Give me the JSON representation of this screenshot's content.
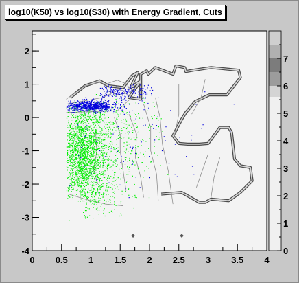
{
  "chart_data": {
    "type": "scatter",
    "title": "log10(K50) vs log10(S30) with Energy Gradient, Cuts",
    "xlabel": "",
    "ylabel": "",
    "xlim": [
      0,
      4
    ],
    "ylim": [
      -4,
      2.6
    ],
    "x_ticks": [
      "0",
      "0.5",
      "1",
      "1.5",
      "2",
      "2.5",
      "3",
      "3.5",
      "4"
    ],
    "y_ticks": [
      "-4",
      "-3",
      "-2",
      "-1",
      "0",
      "1",
      "2"
    ],
    "colorbar": {
      "range": [
        0,
        8
      ],
      "labels": [
        "0",
        "1",
        "2",
        "3",
        "4",
        "5",
        "6",
        "7"
      ],
      "bands": [
        {
          "from": 0,
          "to": 5.6,
          "color": "#f0f0f0"
        },
        {
          "from": 5.6,
          "to": 6.0,
          "color": "#d4d4d4"
        },
        {
          "from": 6.0,
          "to": 6.5,
          "color": "#9c9c9c"
        },
        {
          "from": 6.5,
          "to": 7.0,
          "color": "#7c7c7c"
        },
        {
          "from": 7.0,
          "to": 7.5,
          "color": "#b0b0b0"
        },
        {
          "from": 7.5,
          "to": 8.0,
          "color": "#cfcfcf"
        }
      ]
    },
    "series": [
      {
        "color": "#00ee00",
        "clusters": [
          {
            "cx": 0.85,
            "cy": -1.1,
            "sx": 0.2,
            "sy": 0.75,
            "n": 1900,
            "xmin": 0.58,
            "xmax": 2.1,
            "ymin": -2.6,
            "ymax": 0.35
          },
          {
            "cx": 1.15,
            "cy": -0.7,
            "sx": 0.35,
            "sy": 1.0,
            "n": 500,
            "xmin": 0.58,
            "xmax": 2.4,
            "ymin": -3.1,
            "ymax": 0.5
          },
          {
            "cx": 1.0,
            "cy": -2.3,
            "sx": 0.3,
            "sy": 0.35,
            "n": 200,
            "xmin": 0.85,
            "xmax": 2.2,
            "ymin": -3.2,
            "ymax": -1.8
          },
          {
            "cx": 1.6,
            "cy": -0.4,
            "sx": 0.35,
            "sy": 0.8,
            "n": 150,
            "xmin": 0.58,
            "xmax": 2.4,
            "ymin": -2.4,
            "ymax": 0.8
          }
        ]
      },
      {
        "color": "#0000dd",
        "clusters": [
          {
            "cx": 1.0,
            "cy": 0.35,
            "sx": 0.22,
            "sy": 0.08,
            "n": 700,
            "xmin": 0.58,
            "xmax": 1.75,
            "ymin": 0.1,
            "ymax": 0.62
          },
          {
            "cx": 1.55,
            "cy": 0.75,
            "sx": 0.28,
            "sy": 0.12,
            "n": 220,
            "xmin": 1.15,
            "xmax": 2.05,
            "ymin": 0.5,
            "ymax": 1.0
          },
          {
            "cx": 1.7,
            "cy": -0.7,
            "sx": 0.7,
            "sy": 0.8,
            "n": 110,
            "xmin": 0.6,
            "xmax": 3.5,
            "ymin": -2.4,
            "ymax": 1.4
          }
        ]
      }
    ],
    "contours": [
      {
        "points": [
          [
            0.58,
            0.4
          ],
          [
            1.2,
            0.6
          ],
          [
            1.5,
            0.85
          ],
          [
            1.7,
            0.6
          ],
          [
            1.45,
            0.2
          ],
          [
            0.58,
            0.15
          ]
        ]
      },
      {
        "points": [
          [
            1.25,
            1.0
          ],
          [
            1.45,
            1.12
          ],
          [
            1.62,
            1.0
          ],
          [
            1.68,
            0.75
          ],
          [
            1.45,
            0.68
          ],
          [
            1.28,
            0.8
          ]
        ]
      },
      {
        "points": [
          [
            0.58,
            0.55
          ],
          [
            0.9,
            0.95
          ],
          [
            1.15,
            1.05
          ],
          [
            1.3,
            0.9
          ]
        ]
      },
      {
        "points": [
          [
            1.4,
            0.0
          ],
          [
            1.5,
            -0.5
          ],
          [
            1.5,
            -1.0
          ],
          [
            1.55,
            -1.6
          ],
          [
            1.6,
            -2.2
          ]
        ]
      },
      {
        "points": [
          [
            1.65,
            0.1
          ],
          [
            1.78,
            -0.5
          ],
          [
            1.76,
            -1.2
          ],
          [
            1.85,
            -1.8
          ],
          [
            1.9,
            -2.4
          ]
        ]
      },
      {
        "points": [
          [
            1.9,
            0.4
          ],
          [
            2.02,
            -0.3
          ],
          [
            2.02,
            -1.0
          ],
          [
            2.12,
            -1.7
          ],
          [
            2.15,
            -2.5
          ]
        ]
      },
      {
        "points": [
          [
            2.1,
            0.6
          ],
          [
            2.18,
            0.0
          ],
          [
            2.22,
            -0.8
          ],
          [
            2.32,
            -1.6
          ],
          [
            2.4,
            -2.6
          ]
        ]
      },
      {
        "points": [
          [
            2.5,
            1.0
          ],
          [
            2.5,
            0.1
          ],
          [
            2.42,
            -0.6
          ]
        ]
      },
      {
        "points": [
          [
            2.95,
            1.15
          ],
          [
            2.88,
            0.6
          ],
          [
            2.72,
            0.1
          ]
        ]
      },
      {
        "points": [
          [
            3.0,
            -1.1
          ],
          [
            2.9,
            -1.6
          ],
          [
            2.8,
            -2.1
          ]
        ]
      },
      {
        "points": [
          [
            3.2,
            -1.2
          ],
          [
            3.1,
            -1.8
          ],
          [
            3.05,
            -2.4
          ]
        ]
      },
      {
        "points": [
          [
            1.08,
            -0.4
          ],
          [
            1.1,
            -1.0
          ],
          [
            1.05,
            -1.6
          ],
          [
            1.12,
            -2.0
          ]
        ]
      },
      {
        "points": [
          [
            0.62,
            -2.3
          ],
          [
            0.9,
            -2.45
          ],
          [
            1.25,
            -2.6
          ],
          [
            1.55,
            -2.65
          ]
        ]
      }
    ],
    "outline": {
      "points": [
        [
          0.65,
          0.6
        ],
        [
          0.9,
          0.95
        ],
        [
          1.15,
          1.1
        ],
        [
          1.3,
          0.95
        ],
        [
          1.55,
          0.9
        ],
        [
          1.7,
          1.25
        ],
        [
          1.8,
          1.35
        ],
        [
          1.68,
          0.9
        ],
        [
          1.85,
          1.1
        ],
        [
          1.65,
          0.6
        ],
        [
          1.85,
          0.55
        ],
        [
          1.85,
          1.3
        ],
        [
          1.95,
          1.4
        ],
        [
          1.98,
          1.3
        ],
        [
          2.1,
          1.5
        ],
        [
          2.25,
          1.4
        ],
        [
          2.4,
          1.3
        ],
        [
          2.45,
          1.55
        ],
        [
          2.6,
          1.5
        ],
        [
          2.62,
          1.38
        ],
        [
          2.75,
          1.42
        ],
        [
          3.05,
          1.5
        ],
        [
          3.52,
          1.42
        ],
        [
          3.55,
          1.2
        ],
        [
          3.32,
          0.68
        ],
        [
          3.02,
          0.68
        ],
        [
          2.78,
          0.48
        ],
        [
          2.62,
          0.15
        ],
        [
          2.55,
          -0.05
        ],
        [
          2.4,
          -0.55
        ],
        [
          2.5,
          -0.78
        ],
        [
          2.65,
          -0.8
        ],
        [
          2.85,
          -0.8
        ],
        [
          3.0,
          -0.78
        ],
        [
          3.2,
          -0.3
        ],
        [
          3.35,
          -0.3
        ],
        [
          3.4,
          -0.45
        ],
        [
          3.45,
          -1.25
        ],
        [
          3.55,
          -1.45
        ],
        [
          3.72,
          -1.5
        ],
        [
          3.75,
          -1.9
        ],
        [
          3.55,
          -2.25
        ],
        [
          3.35,
          -2.5
        ],
        [
          3.05,
          -2.45
        ],
        [
          2.95,
          -2.55
        ],
        [
          2.85,
          -2.55
        ],
        [
          2.75,
          -2.45
        ],
        [
          2.55,
          -2.25
        ],
        [
          2.2,
          -2.3
        ]
      ]
    },
    "specks": [
      [
        1.72,
        -3.55
      ],
      [
        2.55,
        -3.55
      ]
    ]
  }
}
